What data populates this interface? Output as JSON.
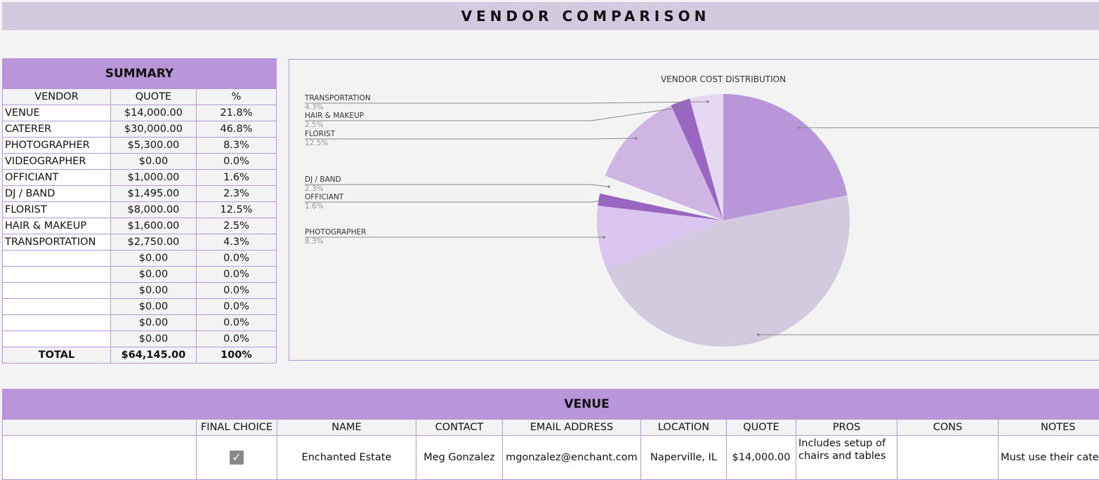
{
  "page": {
    "title": "VENDOR COMPARISON"
  },
  "summary": {
    "heading": "SUMMARY",
    "columns": [
      "VENDOR",
      "QUOTE",
      "%"
    ],
    "rows": [
      {
        "vendor": "VENUE",
        "quote": "$14,000.00",
        "pct": "21.8%"
      },
      {
        "vendor": "CATERER",
        "quote": "$30,000.00",
        "pct": "46.8%"
      },
      {
        "vendor": "PHOTOGRAPHER",
        "quote": "$5,300.00",
        "pct": "8.3%"
      },
      {
        "vendor": "VIDEOGRAPHER",
        "quote": "$0.00",
        "pct": "0.0%"
      },
      {
        "vendor": "OFFICIANT",
        "quote": "$1,000.00",
        "pct": "1.6%"
      },
      {
        "vendor": "DJ / BAND",
        "quote": "$1,495.00",
        "pct": "2.3%"
      },
      {
        "vendor": "FLORIST",
        "quote": "$8,000.00",
        "pct": "12.5%"
      },
      {
        "vendor": "HAIR & MAKEUP",
        "quote": "$1,600.00",
        "pct": "2.5%"
      },
      {
        "vendor": "TRANSPORTATION",
        "quote": "$2,750.00",
        "pct": "4.3%"
      },
      {
        "vendor": "",
        "quote": "$0.00",
        "pct": "0.0%"
      },
      {
        "vendor": "",
        "quote": "$0.00",
        "pct": "0.0%"
      },
      {
        "vendor": "",
        "quote": "$0.00",
        "pct": "0.0%"
      },
      {
        "vendor": "",
        "quote": "$0.00",
        "pct": "0.0%"
      },
      {
        "vendor": "",
        "quote": "$0.00",
        "pct": "0.0%"
      },
      {
        "vendor": "",
        "quote": "$0.00",
        "pct": "0.0%"
      }
    ],
    "total": {
      "label": "TOTAL",
      "quote": "$64,145.00",
      "pct": "100%"
    }
  },
  "chart_data": {
    "type": "pie",
    "title": "VENDOR COST DISTRIBUTION",
    "categories": [
      "VENUE",
      "CATERER",
      "PHOTOGRAPHER",
      "VIDEOGRAPHER",
      "OFFICIANT",
      "DJ / BAND",
      "FLORIST",
      "HAIR & MAKEUP",
      "TRANSPORTATION"
    ],
    "values": [
      14000,
      30000,
      5300,
      0,
      1000,
      1495,
      8000,
      1600,
      2750
    ],
    "percentages": [
      21.8,
      46.8,
      8.3,
      0.0,
      1.6,
      2.3,
      12.5,
      2.5,
      4.3
    ],
    "colors": [
      "#b995da",
      "#d4cadf",
      "#dac5ee",
      "#dac5ee",
      "#9966c2",
      "#f3f3f3",
      "#cfb5e4",
      "#9966c2",
      "#e6d8f2"
    ],
    "visible_labels": [
      {
        "name": "TRANSPORTATION",
        "pct": "4.3%"
      },
      {
        "name": "HAIR & MAKEUP",
        "pct": "2.5%"
      },
      {
        "name": "FLORIST",
        "pct": "12.5%"
      },
      {
        "name": "DJ / BAND",
        "pct": "2.3%"
      },
      {
        "name": "OFFICIANT",
        "pct": "1.6%"
      },
      {
        "name": "PHOTOGRAPHER",
        "pct": "8.3%"
      }
    ],
    "legend": "leader-line labels",
    "start_angle": "12 o'clock, clockwise"
  },
  "venue": {
    "heading": "VENUE",
    "columns": [
      "",
      "FINAL CHOICE",
      "NAME",
      "CONTACT",
      "EMAIL ADDRESS",
      "LOCATION",
      "QUOTE",
      "PROS",
      "CONS",
      "NOTES"
    ],
    "rows": [
      {
        "label": "",
        "final_choice": true,
        "name": "Enchanted Estate",
        "contact": "Meg Gonzalez",
        "email": "mgonzalez@enchant.com",
        "location": "Naperville, IL",
        "quote": "$14,000.00",
        "pros": "Includes setup of chairs and tables",
        "cons": "",
        "notes": "Must use their cater"
      }
    ]
  },
  "icons": {
    "checkbox_checked": "✓"
  }
}
